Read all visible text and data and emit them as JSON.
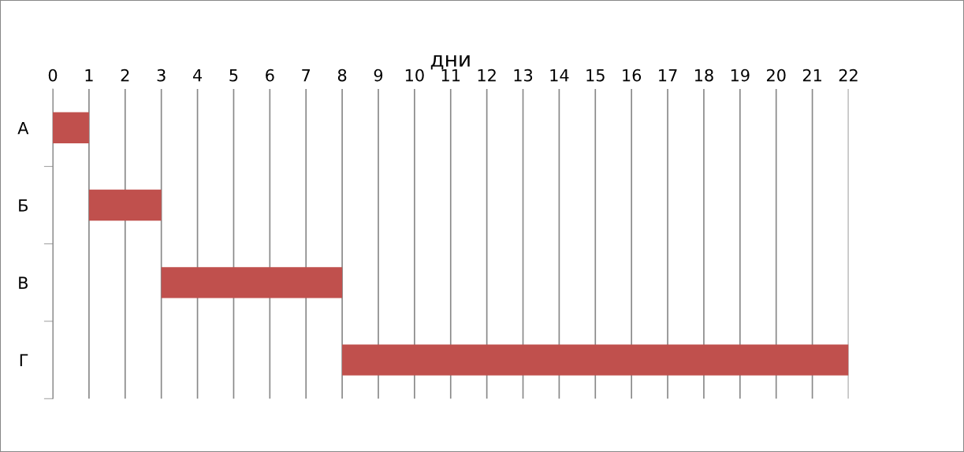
{
  "chart_data": {
    "type": "bar",
    "orientation": "horizontal",
    "xlabel": "дни",
    "categories": [
      "А",
      "Б",
      "В",
      "Г"
    ],
    "base": [
      0,
      1,
      3,
      8
    ],
    "values": [
      1,
      2,
      5,
      14
    ],
    "color": "#c0504d",
    "xlim": [
      0,
      22
    ],
    "xticks": [
      0,
      1,
      2,
      3,
      4,
      5,
      6,
      7,
      8,
      9,
      10,
      11,
      12,
      13,
      14,
      15,
      16,
      17,
      18,
      19,
      20,
      21,
      22
    ],
    "grid": "x"
  }
}
